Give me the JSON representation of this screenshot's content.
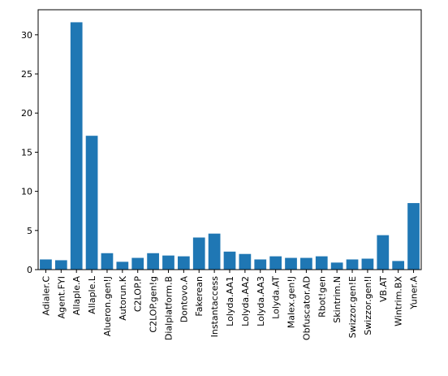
{
  "chart_data": {
    "type": "bar",
    "categories": [
      "Adialer.C",
      "Agent.FYI",
      "Allaple.A",
      "Allaple.L",
      "Alueron.gen!J",
      "Autorun.K",
      "C2LOP.P",
      "C2LOP.gen!g",
      "Dialplatform.B",
      "Dontovo.A",
      "Fakerean",
      "Instantaccess",
      "Lolyda.AA1",
      "Lolyda.AA2",
      "Lolyda.AA3",
      "Lolyda.AT",
      "Malex.gen!J",
      "Obfuscator.AD",
      "Rbot!gen",
      "Skintrim.N",
      "Swizzor.gen!E",
      "Swizzor.gen!I",
      "VB.AT",
      "Wintrim.BX",
      "Yuner.A"
    ],
    "values": [
      1.3,
      1.2,
      31.6,
      17.1,
      2.1,
      1.0,
      1.5,
      2.1,
      1.8,
      1.7,
      4.1,
      4.6,
      2.3,
      2.0,
      1.3,
      1.7,
      1.5,
      1.5,
      1.7,
      0.9,
      1.3,
      1.4,
      4.4,
      1.1,
      8.5
    ],
    "ylim": [
      0,
      33.2
    ],
    "yticks": [
      0,
      5,
      10,
      15,
      20,
      25,
      30
    ],
    "color": "#1f77b4",
    "grid": false,
    "title": "",
    "xlabel": "",
    "ylabel": ""
  }
}
